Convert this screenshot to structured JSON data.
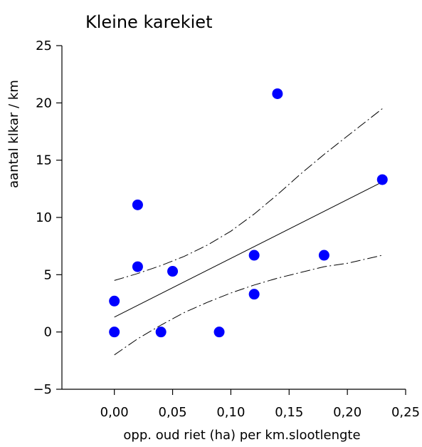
{
  "chart_data": {
    "type": "scatter",
    "title": "Kleine karekiet",
    "xlabel": "opp. oud riet (ha) per km.slootlengte",
    "ylabel": "aantal klkar / km",
    "xlim": [
      -0.045,
      0.25
    ],
    "ylim": [
      -5,
      25
    ],
    "x_ticks": [
      0.0,
      0.05,
      0.1,
      0.15,
      0.2,
      0.25
    ],
    "x_tick_labels": [
      "0,00",
      "0,05",
      "0,10",
      "0,15",
      "0,20",
      "0,25"
    ],
    "y_ticks": [
      -5,
      0,
      5,
      10,
      15,
      20,
      25
    ],
    "y_tick_labels": [
      "−5",
      "0",
      "5",
      "10",
      "15",
      "20",
      "25"
    ],
    "grid": false,
    "points": [
      {
        "x": 0.0,
        "y": 0.0
      },
      {
        "x": 0.0,
        "y": 2.7
      },
      {
        "x": 0.02,
        "y": 11.1
      },
      {
        "x": 0.02,
        "y": 5.7
      },
      {
        "x": 0.04,
        "y": 0.0
      },
      {
        "x": 0.05,
        "y": 5.3
      },
      {
        "x": 0.09,
        "y": 0.0
      },
      {
        "x": 0.12,
        "y": 6.7
      },
      {
        "x": 0.12,
        "y": 3.3
      },
      {
        "x": 0.14,
        "y": 20.8
      },
      {
        "x": 0.18,
        "y": 6.7
      },
      {
        "x": 0.23,
        "y": 13.3
      }
    ],
    "regression_line": {
      "x": [
        0.0,
        0.23
      ],
      "y": [
        1.3,
        13.1
      ]
    },
    "confidence_upper": {
      "x": [
        0.0,
        0.02,
        0.04,
        0.06,
        0.08,
        0.1,
        0.12,
        0.14,
        0.16,
        0.18,
        0.2,
        0.23
      ],
      "y": [
        4.5,
        5.1,
        5.8,
        6.6,
        7.6,
        8.8,
        10.3,
        12.0,
        13.8,
        15.5,
        17.1,
        19.5
      ]
    },
    "confidence_lower": {
      "x": [
        0.0,
        0.02,
        0.04,
        0.06,
        0.08,
        0.1,
        0.12,
        0.14,
        0.16,
        0.18,
        0.2,
        0.23
      ],
      "y": [
        -2.0,
        -0.6,
        0.6,
        1.7,
        2.6,
        3.4,
        4.1,
        4.7,
        5.2,
        5.7,
        6.0,
        6.7
      ]
    },
    "marker_color": "#0000ff",
    "line_color": "#000000"
  }
}
